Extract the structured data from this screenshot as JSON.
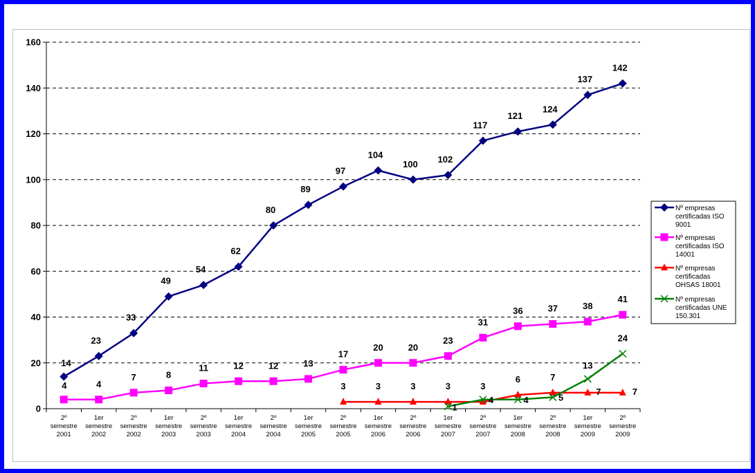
{
  "chart_data": {
    "type": "line",
    "categories": [
      [
        "2º",
        "semestre",
        "2001"
      ],
      [
        "1er",
        "semestre",
        "2002"
      ],
      [
        "2º",
        "semestre",
        "2002"
      ],
      [
        "1er",
        "semestre",
        "2003"
      ],
      [
        "2º",
        "semestre",
        "2003"
      ],
      [
        "1er",
        "semestre",
        "2004"
      ],
      [
        "2º",
        "semestre",
        "2004"
      ],
      [
        "1er",
        "semestre",
        "2005"
      ],
      [
        "2º",
        "semestre",
        "2005"
      ],
      [
        "1er",
        "semestre",
        "2006"
      ],
      [
        "2º",
        "semestre",
        "2006"
      ],
      [
        "1er",
        "semestre",
        "2007"
      ],
      [
        "2º",
        "semestre",
        "2007"
      ],
      [
        "1er",
        "semestre",
        "2008"
      ],
      [
        "2º",
        "semestre",
        "2008"
      ],
      [
        "1er",
        "semestre",
        "2009"
      ],
      [
        "2º",
        "semestre",
        "2009"
      ]
    ],
    "ylim": [
      0,
      160
    ],
    "yticks": [
      0,
      20,
      40,
      60,
      80,
      100,
      120,
      140,
      160
    ],
    "grid": true,
    "legend_position": "right",
    "series": [
      {
        "name": [
          "Nº empresas",
          "certificadas ISO",
          "9001"
        ],
        "color": "#000080",
        "marker": "diamond",
        "values": [
          14,
          23,
          33,
          49,
          54,
          62,
          80,
          89,
          97,
          104,
          100,
          102,
          117,
          121,
          124,
          137,
          142
        ]
      },
      {
        "name": [
          "Nº empresas",
          "certificadas ISO",
          "14001"
        ],
        "color": "#ff00ff",
        "marker": "square",
        "values": [
          4,
          4,
          7,
          8,
          11,
          12,
          12,
          13,
          17,
          20,
          20,
          23,
          31,
          36,
          37,
          38,
          41
        ]
      },
      {
        "name": [
          "Nº empresas",
          "certificadas",
          "OHSAS 18001"
        ],
        "color": "#ff0000",
        "marker": "triangle",
        "values": [
          null,
          null,
          null,
          null,
          null,
          null,
          null,
          null,
          3,
          3,
          3,
          3,
          3,
          6,
          7,
          7,
          7
        ]
      },
      {
        "name": [
          "Nº empresas",
          "certificadas UNE",
          "150.301"
        ],
        "color": "#008000",
        "marker": "x",
        "values": [
          null,
          null,
          null,
          null,
          null,
          null,
          null,
          null,
          null,
          null,
          null,
          1,
          4,
          4,
          5,
          13,
          24
        ]
      }
    ]
  }
}
